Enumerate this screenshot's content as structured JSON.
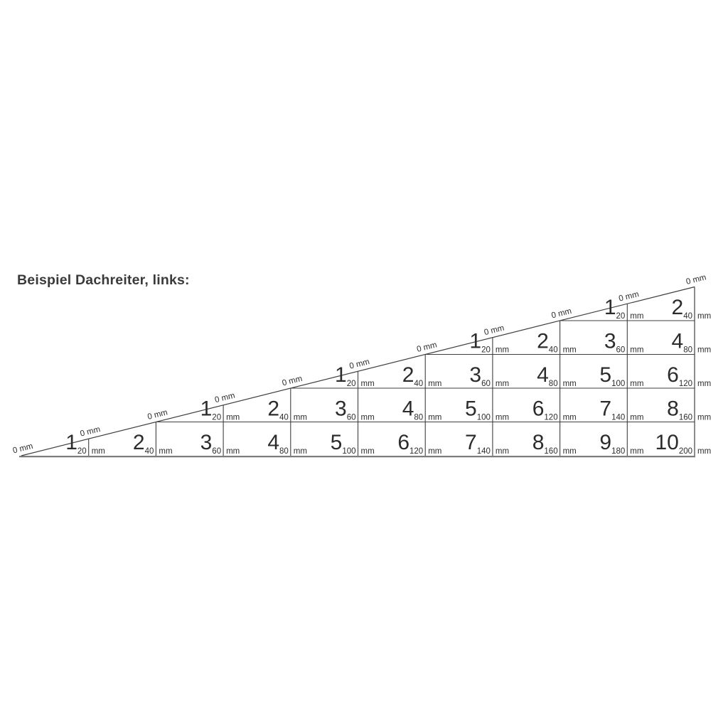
{
  "page": {
    "background": "#ffffff"
  },
  "header": {
    "title": "Beispiel Dachreiter, links:"
  },
  "diagram": {
    "kind": "roof-pitch-measuring-triangle",
    "unit_label": "mm",
    "zero_label": "0 mm",
    "colors": {
      "line": "#3f3f3e",
      "baseline": "#757575",
      "text": "#2c2c2b",
      "title": "#3a3a39",
      "background": "#ffffff"
    },
    "rows": [
      {
        "name": "row-1-bottom",
        "cells": [
          {
            "n": "1",
            "sub": "20"
          },
          {
            "n": "2",
            "sub": "40"
          },
          {
            "n": "3",
            "sub": "60"
          },
          {
            "n": "4",
            "sub": "80"
          },
          {
            "n": "5",
            "sub": "100"
          },
          {
            "n": "6",
            "sub": "120"
          },
          {
            "n": "7",
            "sub": "140"
          },
          {
            "n": "8",
            "sub": "160"
          },
          {
            "n": "9",
            "sub": "180"
          },
          {
            "n": "10",
            "sub": "200"
          }
        ]
      },
      {
        "name": "row-2",
        "cells": [
          {
            "n": "1",
            "sub": "20"
          },
          {
            "n": "2",
            "sub": "40"
          },
          {
            "n": "3",
            "sub": "60"
          },
          {
            "n": "4",
            "sub": "80"
          },
          {
            "n": "5",
            "sub": "100"
          },
          {
            "n": "6",
            "sub": "120"
          },
          {
            "n": "7",
            "sub": "140"
          },
          {
            "n": "8",
            "sub": "160"
          }
        ]
      },
      {
        "name": "row-3",
        "cells": [
          {
            "n": "1",
            "sub": "20"
          },
          {
            "n": "2",
            "sub": "40"
          },
          {
            "n": "3",
            "sub": "60"
          },
          {
            "n": "4",
            "sub": "80"
          },
          {
            "n": "5",
            "sub": "100"
          },
          {
            "n": "6",
            "sub": "120"
          }
        ]
      },
      {
        "name": "row-4",
        "cells": [
          {
            "n": "1",
            "sub": "20"
          },
          {
            "n": "2",
            "sub": "40"
          },
          {
            "n": "3",
            "sub": "60"
          },
          {
            "n": "4",
            "sub": "80"
          }
        ]
      },
      {
        "name": "row-5-top",
        "cells": [
          {
            "n": "1",
            "sub": "20"
          },
          {
            "n": "2",
            "sub": "40"
          }
        ]
      }
    ]
  }
}
